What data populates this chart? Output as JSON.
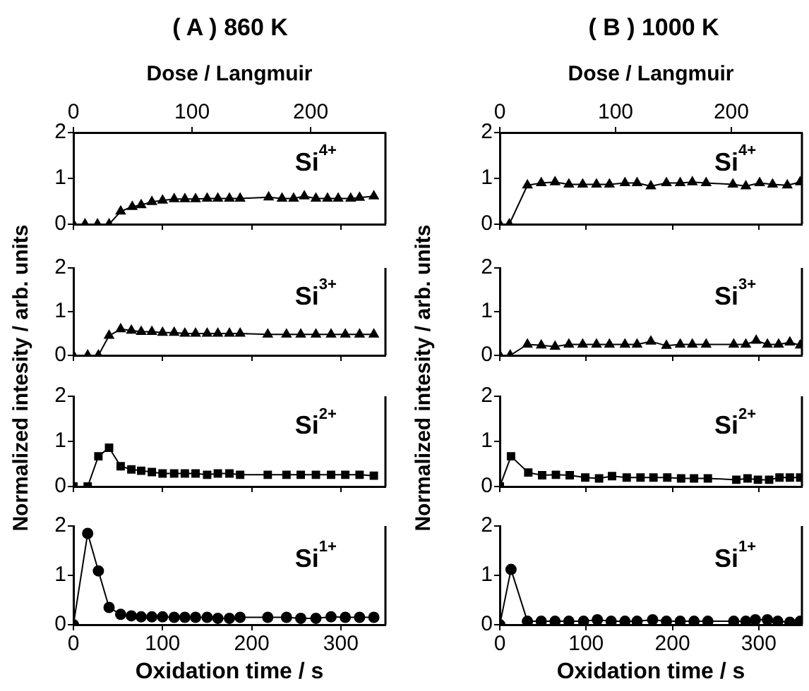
{
  "chart_data": [
    {
      "type": "line",
      "tick_labels": "y",
      "title": "( A ) 860 K",
      "ylabel": "Normalized intesity / arb. units",
      "x2label": "Dose / Langmuir",
      "x2lim": [
        0,
        263
      ],
      "x2ticks": [
        0,
        100,
        200
      ],
      "xlim": [
        0,
        350
      ],
      "xticks": [
        {
          "value": 0,
          "label": null
        },
        {
          "value": 100,
          "label": null
        },
        {
          "value": 200,
          "label": null
        },
        {
          "value": 300,
          "label": null
        }
      ],
      "ylim": [
        0,
        2
      ],
      "yticks": [
        0,
        1,
        2
      ],
      "marker": "triangle",
      "annotations": [
        "Si$^{4+}$"
      ],
      "series": [
        {
          "color": "#000000",
          "x": [
            0,
            13,
            27,
            40,
            53,
            66,
            76,
            88,
            100,
            113,
            125,
            137,
            150,
            162,
            175,
            187,
            219,
            234,
            247,
            259,
            272,
            285,
            297,
            311,
            321,
            337
          ],
          "values": [
            0,
            0,
            0,
            0,
            0.28,
            0.38,
            0.42,
            0.49,
            0.52,
            0.55,
            0.55,
            0.55,
            0.56,
            0.56,
            0.56,
            0.56,
            0.59,
            0.56,
            0.56,
            0.61,
            0.56,
            0.56,
            0.56,
            0.56,
            0.58,
            0.61
          ]
        }
      ]
    },
    {
      "type": "line",
      "tick_labels": "y",
      "xlim": [
        0,
        350
      ],
      "xticks": [
        {
          "value": 0,
          "label": null
        },
        {
          "value": 100,
          "label": null
        },
        {
          "value": 200,
          "label": null
        },
        {
          "value": 300,
          "label": null
        }
      ],
      "ylim": [
        0,
        2
      ],
      "yticks": [
        0,
        1,
        2
      ],
      "marker": "triangle",
      "annotations": [
        "Si$^{3+}$"
      ],
      "series": [
        {
          "color": "#000000",
          "x": [
            0,
            16,
            28,
            40,
            53,
            65,
            76,
            88,
            100,
            113,
            125,
            137,
            150,
            162,
            175,
            187,
            218,
            239,
            255,
            272,
            289,
            305,
            321,
            337
          ],
          "values": [
            0,
            0,
            0,
            0.45,
            0.6,
            0.57,
            0.54,
            0.54,
            0.52,
            0.52,
            0.5,
            0.5,
            0.5,
            0.5,
            0.5,
            0.5,
            0.48,
            0.48,
            0.48,
            0.48,
            0.48,
            0.48,
            0.48,
            0.48
          ]
        }
      ]
    },
    {
      "type": "line",
      "tick_labels": "y",
      "xlim": [
        0,
        350
      ],
      "xticks": [
        {
          "value": 0,
          "label": null
        },
        {
          "value": 100,
          "label": null
        },
        {
          "value": 200,
          "label": null
        },
        {
          "value": 300,
          "label": null
        }
      ],
      "ylim": [
        0,
        2
      ],
      "yticks": [
        0,
        1,
        2
      ],
      "marker": "square",
      "annotations": [
        "Si$^{2+}$"
      ],
      "series": [
        {
          "color": "#000000",
          "x": [
            0,
            16,
            28,
            40,
            53,
            65,
            76,
            88,
            100,
            113,
            125,
            137,
            150,
            162,
            175,
            187,
            218,
            239,
            255,
            272,
            289,
            305,
            321,
            337
          ],
          "values": [
            0,
            0,
            0.67,
            0.86,
            0.45,
            0.38,
            0.35,
            0.32,
            0.29,
            0.29,
            0.29,
            0.29,
            0.26,
            0.29,
            0.29,
            0.26,
            0.26,
            0.26,
            0.26,
            0.26,
            0.26,
            0.26,
            0.26,
            0.24
          ]
        }
      ]
    },
    {
      "type": "line",
      "xlabel": "Oxidation time / s",
      "xlim": [
        0,
        350
      ],
      "xticks": [
        0,
        100,
        200,
        300
      ],
      "ylim": [
        0,
        2
      ],
      "yticks": [
        0,
        1,
        2
      ],
      "marker": "circle",
      "annotations": [
        "Si$^{1+}$"
      ],
      "series": [
        {
          "color": "#000000",
          "x": [
            0,
            16,
            28,
            40,
            53,
            65,
            76,
            88,
            100,
            113,
            125,
            137,
            150,
            162,
            175,
            187,
            218,
            239,
            255,
            272,
            289,
            305,
            321,
            337
          ],
          "values": [
            0,
            1.85,
            1.09,
            0.35,
            0.21,
            0.18,
            0.16,
            0.16,
            0.16,
            0.15,
            0.15,
            0.15,
            0.15,
            0.13,
            0.13,
            0.15,
            0.15,
            0.15,
            0.13,
            0.13,
            0.16,
            0.15,
            0.15,
            0.15
          ]
        }
      ]
    },
    {
      "type": "line",
      "tick_labels": "y",
      "title": "( B ) 1000 K",
      "ylabel": "Normalized intesity / arb. units",
      "x2label": "Dose / Langmuir",
      "x2lim": [
        0,
        261
      ],
      "x2ticks": [
        0,
        100,
        200
      ],
      "xlim": [
        0,
        350
      ],
      "xticks": [
        {
          "value": 0,
          "label": null
        },
        {
          "value": 100,
          "label": null
        },
        {
          "value": 200,
          "label": null
        },
        {
          "value": 300,
          "label": null
        }
      ],
      "ylim": [
        0,
        2
      ],
      "yticks": [
        0,
        1,
        2
      ],
      "marker": "triangle",
      "annotations": [
        "Si$^{4+}$"
      ],
      "series": [
        {
          "color": "#000000",
          "x": [
            0,
            11,
            32,
            48,
            64,
            80,
            96,
            112,
            127,
            145,
            159,
            175,
            193,
            209,
            223,
            239,
            270,
            285,
            301,
            316,
            333,
            348
          ],
          "values": [
            0,
            0,
            0.85,
            0.9,
            0.92,
            0.87,
            0.87,
            0.87,
            0.87,
            0.9,
            0.9,
            0.83,
            0.9,
            0.9,
            0.92,
            0.9,
            0.87,
            0.83,
            0.9,
            0.87,
            0.85,
            0.92
          ]
        }
      ]
    },
    {
      "type": "line",
      "tick_labels": "y",
      "xlim": [
        0,
        350
      ],
      "xticks": [
        {
          "value": 0,
          "label": null
        },
        {
          "value": 100,
          "label": null
        },
        {
          "value": 200,
          "label": null
        },
        {
          "value": 300,
          "label": null
        }
      ],
      "ylim": [
        0,
        2
      ],
      "yticks": [
        0,
        1,
        2
      ],
      "marker": "triangle",
      "annotations": [
        "Si$^{3+}$"
      ],
      "series": [
        {
          "color": "#000000",
          "x": [
            0,
            12,
            32,
            48,
            64,
            80,
            96,
            112,
            127,
            145,
            159,
            175,
            193,
            209,
            223,
            239,
            271,
            285,
            297,
            310,
            323,
            336,
            348
          ],
          "values": [
            0,
            0,
            0.25,
            0.23,
            0.2,
            0.25,
            0.25,
            0.25,
            0.25,
            0.25,
            0.25,
            0.32,
            0.22,
            0.25,
            0.25,
            0.25,
            0.25,
            0.25,
            0.34,
            0.25,
            0.25,
            0.3,
            0.23
          ]
        }
      ]
    },
    {
      "type": "line",
      "tick_labels": "y",
      "xlim": [
        0,
        350
      ],
      "xticks": [
        {
          "value": 0,
          "label": null
        },
        {
          "value": 100,
          "label": null
        },
        {
          "value": 200,
          "label": null
        },
        {
          "value": 300,
          "label": null
        }
      ],
      "ylim": [
        0,
        2
      ],
      "yticks": [
        0,
        1,
        2
      ],
      "marker": "square",
      "annotations": [
        "Si$^{2+}$"
      ],
      "series": [
        {
          "color": "#000000",
          "x": [
            0,
            13,
            33,
            49,
            65,
            81,
            99,
            115,
            130,
            147,
            163,
            178,
            194,
            210,
            225,
            241,
            274,
            287,
            299,
            312,
            324,
            336,
            348
          ],
          "values": [
            0,
            0.67,
            0.31,
            0.25,
            0.26,
            0.25,
            0.2,
            0.18,
            0.23,
            0.2,
            0.2,
            0.2,
            0.2,
            0.18,
            0.18,
            0.18,
            0.15,
            0.18,
            0.15,
            0.15,
            0.2,
            0.2,
            0.2
          ]
        }
      ]
    },
    {
      "type": "line",
      "xlabel": "Oxidation time / s",
      "xlim": [
        0,
        350
      ],
      "xticks": [
        0,
        100,
        200,
        300
      ],
      "ylim": [
        0,
        2
      ],
      "yticks": [
        0,
        1,
        2
      ],
      "marker": "circle",
      "annotations": [
        "Si$^{1+}$"
      ],
      "series": [
        {
          "color": "#000000",
          "x": [
            0,
            13,
            32,
            48,
            64,
            80,
            97,
            113,
            129,
            145,
            159,
            177,
            193,
            209,
            225,
            241,
            271,
            285,
            296,
            310,
            322,
            336,
            348
          ],
          "values": [
            0,
            1.12,
            0.07,
            0.07,
            0.07,
            0.07,
            0.07,
            0.1,
            0.07,
            0.07,
            0.07,
            0.1,
            0.07,
            0.07,
            0.07,
            0.07,
            0.07,
            0.07,
            0.1,
            0.1,
            0.07,
            0.05,
            0.07
          ]
        }
      ]
    }
  ]
}
